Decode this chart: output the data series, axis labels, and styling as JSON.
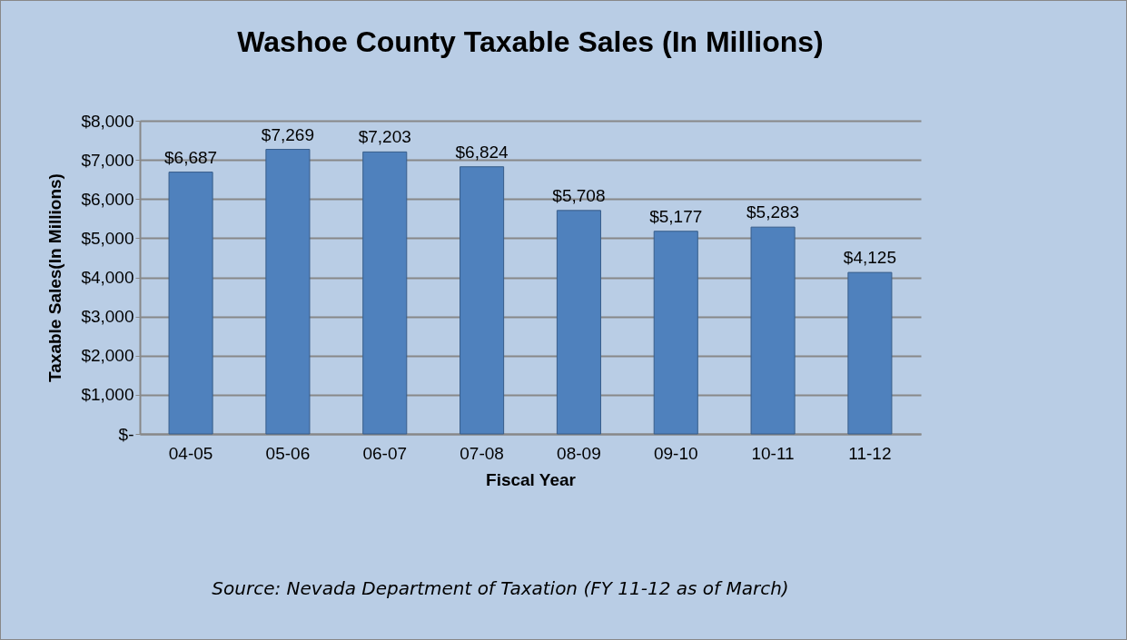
{
  "chart_data": {
    "type": "bar",
    "title": "Washoe County Taxable Sales (In Millions)",
    "xlabel": "Fiscal Year",
    "ylabel": "Taxable Sales(In Millions)",
    "categories": [
      "04-05",
      "05-06",
      "06-07",
      "07-08",
      "08-09",
      "09-10",
      "10-11",
      "11-12"
    ],
    "values": [
      6687,
      7269,
      7203,
      6824,
      5708,
      5177,
      5283,
      4125
    ],
    "value_labels": [
      "$6,687",
      "$7,269",
      "$7,203",
      "$6,824",
      "$5,708",
      "$5,177",
      "$5,283",
      "$4,125"
    ],
    "color": "#4f81bd",
    "ylim": [
      0,
      8000
    ],
    "yticks": [
      {
        "value": 0,
        "label": "$-"
      },
      {
        "value": 1000,
        "label": "$1,000"
      },
      {
        "value": 2000,
        "label": "$2,000"
      },
      {
        "value": 3000,
        "label": "$3,000"
      },
      {
        "value": 4000,
        "label": "$4,000"
      },
      {
        "value": 5000,
        "label": "$5,000"
      },
      {
        "value": 6000,
        "label": "$6,000"
      },
      {
        "value": 7000,
        "label": "$7,000"
      },
      {
        "value": 8000,
        "label": "$8,000"
      }
    ],
    "grid": "y",
    "annotations": [
      "Source: Nevada Department of Taxation (FY 11-12 as of March)"
    ]
  }
}
